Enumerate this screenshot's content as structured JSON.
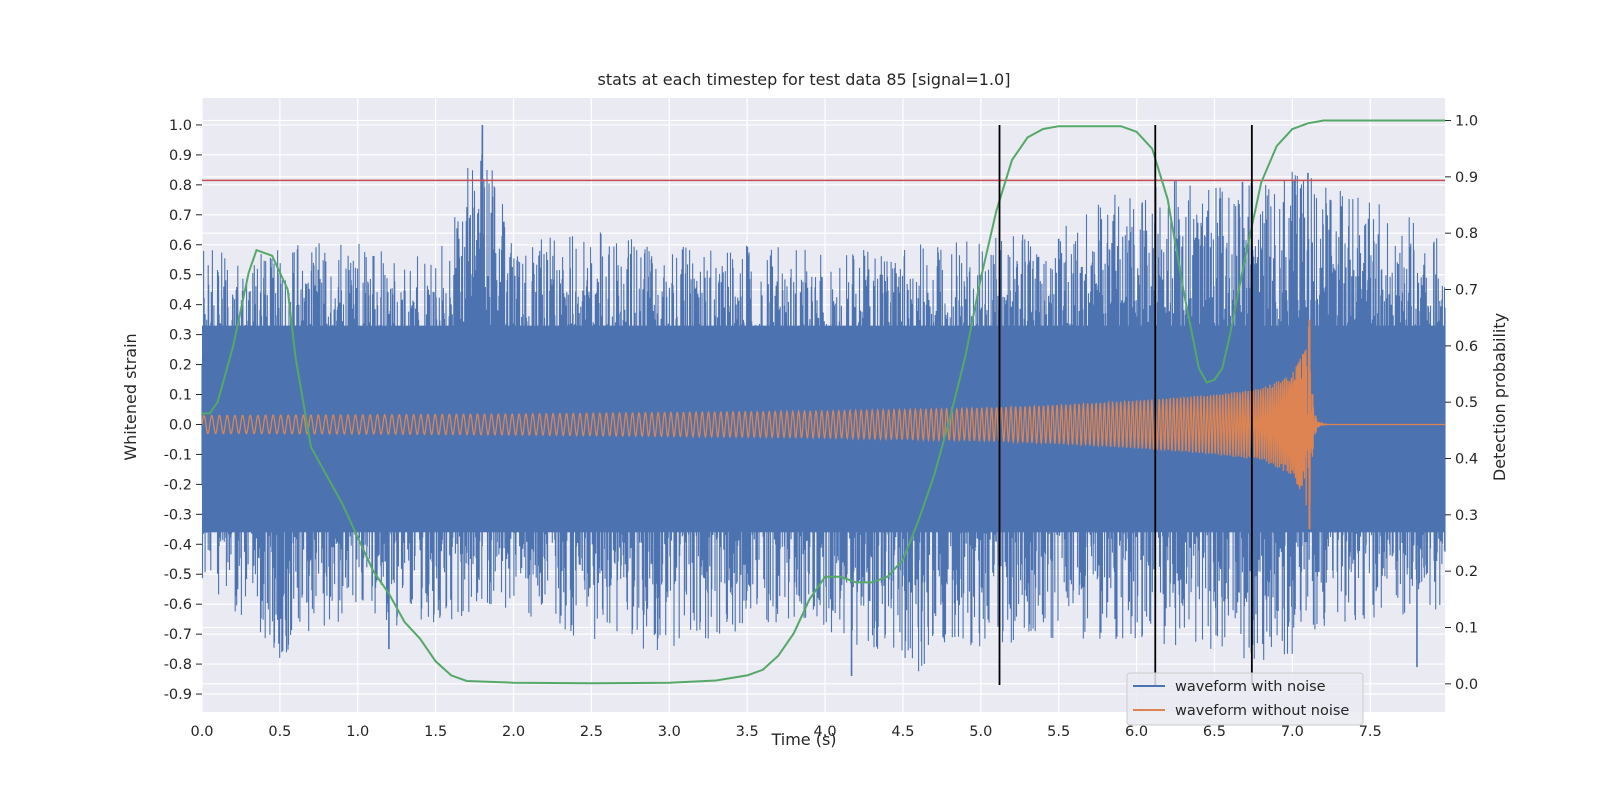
{
  "chart_data": {
    "type": "line",
    "title": "stats at each timestep for test data 85 [signal=1.0]",
    "xlabel": "Time (s)",
    "ylabel": "Whitened strain",
    "y2label": "Detection probability",
    "xlim": [
      0.0,
      7.98
    ],
    "ylim": [
      -0.96,
      1.09
    ],
    "y2lim": [
      -0.05,
      1.04
    ],
    "x_ticks": [
      "0.0",
      "0.5",
      "1.0",
      "1.5",
      "2.0",
      "2.5",
      "3.0",
      "3.5",
      "4.0",
      "4.5",
      "5.0",
      "5.5",
      "6.0",
      "6.5",
      "7.0",
      "7.5"
    ],
    "y_ticks": [
      "1.0",
      "0.9",
      "0.8",
      "0.7",
      "0.6",
      "0.5",
      "0.4",
      "0.3",
      "0.2",
      "0.1",
      "0.0",
      "-0.1",
      "-0.2",
      "-0.3",
      "-0.4",
      "-0.5",
      "-0.6",
      "-0.7",
      "-0.8",
      "-0.9"
    ],
    "y2_ticks": [
      "1.0",
      "0.9",
      "0.8",
      "0.7",
      "0.6",
      "0.5",
      "0.4",
      "0.3",
      "0.2",
      "0.1",
      "0.0"
    ],
    "grid": true,
    "legend_position": "bottom-right",
    "series": [
      {
        "name": "waveform with noise",
        "color": "#4c72b0",
        "envelope": {
          "t": [
            0.0,
            0.5,
            1.0,
            1.5,
            1.8,
            2.0,
            2.5,
            3.0,
            3.5,
            4.0,
            4.5,
            5.0,
            5.5,
            6.0,
            6.5,
            7.0,
            7.1,
            7.98
          ],
          "upper": [
            0.58,
            0.6,
            0.62,
            0.55,
            1.0,
            0.6,
            0.65,
            0.6,
            0.6,
            0.58,
            0.6,
            0.62,
            0.65,
            0.83,
            0.81,
            0.85,
            0.83,
            0.67
          ],
          "lower": [
            -0.52,
            -0.78,
            -0.65,
            -0.7,
            -0.6,
            -0.62,
            -0.73,
            -0.76,
            -0.7,
            -0.68,
            -0.85,
            -0.75,
            -0.72,
            -0.72,
            -0.76,
            -0.82,
            -0.7,
            -0.62
          ]
        },
        "peaks": [
          [
            1.8,
            1.0
          ],
          [
            1.2,
            -0.75
          ],
          [
            4.17,
            -0.84
          ],
          [
            5.5,
            0.62
          ],
          [
            6.25,
            0.58
          ],
          [
            7.1,
            0.84
          ],
          [
            6.68,
            0.81
          ],
          [
            7.8,
            -0.81
          ]
        ]
      },
      {
        "name": "waveform without noise",
        "color": "#dd8452",
        "chirp": {
          "t_start": 0.0,
          "t_merger": 7.11,
          "amp_start": 0.03,
          "amp_merger": 0.35,
          "t": [
            0.0,
            1.0,
            2.0,
            3.0,
            4.0,
            5.0,
            5.5,
            6.0,
            6.5,
            6.8,
            7.0,
            7.08,
            7.11
          ],
          "amplitude": [
            0.03,
            0.032,
            0.035,
            0.04,
            0.045,
            0.055,
            0.065,
            0.08,
            0.1,
            0.12,
            0.17,
            0.25,
            0.35
          ]
        }
      },
      {
        "name": "",
        "axis": "right",
        "color": "#55a868",
        "x": [
          0.0,
          0.05,
          0.1,
          0.2,
          0.3,
          0.35,
          0.45,
          0.55,
          0.6,
          0.7,
          0.8,
          0.9,
          1.0,
          1.1,
          1.2,
          1.3,
          1.4,
          1.5,
          1.6,
          1.7,
          2.0,
          2.5,
          3.0,
          3.3,
          3.5,
          3.6,
          3.7,
          3.8,
          3.9,
          4.0,
          4.1,
          4.2,
          4.3,
          4.4,
          4.5,
          4.6,
          4.7,
          4.8,
          4.9,
          5.0,
          5.1,
          5.2,
          5.3,
          5.4,
          5.5,
          5.7,
          5.9,
          6.0,
          6.1,
          6.2,
          6.3,
          6.4,
          6.45,
          6.5,
          6.55,
          6.6,
          6.7,
          6.8,
          6.9,
          7.0,
          7.1,
          7.2,
          7.4,
          7.6,
          7.98
        ],
        "y": [
          0.48,
          0.48,
          0.5,
          0.6,
          0.73,
          0.77,
          0.76,
          0.7,
          0.58,
          0.42,
          0.37,
          0.32,
          0.26,
          0.2,
          0.16,
          0.11,
          0.08,
          0.04,
          0.015,
          0.005,
          0.002,
          0.001,
          0.002,
          0.006,
          0.015,
          0.025,
          0.05,
          0.09,
          0.15,
          0.19,
          0.19,
          0.18,
          0.18,
          0.19,
          0.22,
          0.29,
          0.37,
          0.47,
          0.58,
          0.72,
          0.84,
          0.93,
          0.97,
          0.985,
          0.99,
          0.99,
          0.99,
          0.98,
          0.95,
          0.86,
          0.7,
          0.56,
          0.535,
          0.54,
          0.56,
          0.62,
          0.76,
          0.89,
          0.955,
          0.985,
          0.995,
          1.0,
          1.0,
          1.0,
          1.0
        ]
      }
    ],
    "hlines": [
      {
        "y": 0.815,
        "color": "#c44e52"
      }
    ],
    "vlines": [
      {
        "x": 5.12,
        "y_from": -0.87,
        "y_to": 1.0,
        "color": "#000000"
      },
      {
        "x": 6.12,
        "y_from": -0.87,
        "y_to": 1.0,
        "color": "#000000"
      },
      {
        "x": 6.74,
        "y_from": -0.87,
        "y_to": 1.0,
        "color": "#000000"
      }
    ]
  }
}
